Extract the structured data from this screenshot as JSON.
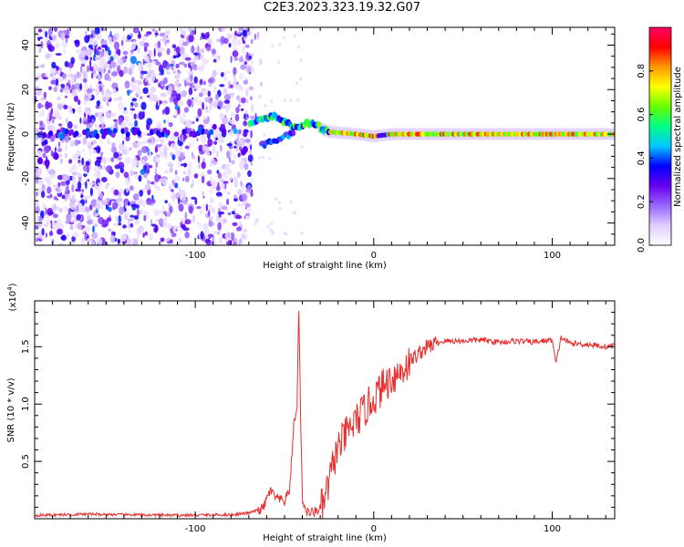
{
  "title": "C2E3.2023.323.19.32.G07",
  "chart_data": [
    {
      "type": "heatmap",
      "xlabel": "Height of straight line (km)",
      "ylabel": "Frequency (Hz)",
      "xlim": [
        -190,
        135
      ],
      "ylim": [
        -50,
        48
      ],
      "xticks": [
        -100,
        0,
        100
      ],
      "yticks": [
        -40,
        -20,
        0,
        20,
        40
      ],
      "colorbar": {
        "label": "Normalized spectral amplitude",
        "range": [
          0,
          1
        ],
        "ticks": [
          "0.0",
          "0.2",
          "0.4",
          "0.6",
          "0.8"
        ],
        "colors": [
          "#ffffff",
          "#e0ccff",
          "#9966ff",
          "#6600ee",
          "#0000ff",
          "#00c8ff",
          "#00ff88",
          "#66ff00",
          "#ffff00",
          "#ff9900",
          "#ff0000",
          "#ff0066"
        ]
      },
      "ridge": [
        {
          "x": -190,
          "f": 0
        },
        {
          "x": -100,
          "f": 1
        },
        {
          "x": -75,
          "f": 3
        },
        {
          "x": -60,
          "f": 7
        },
        {
          "x": -55,
          "f": 8
        },
        {
          "x": -45,
          "f": 3
        },
        {
          "x": -35,
          "f": 5
        },
        {
          "x": -25,
          "f": 1
        },
        {
          "x": -10,
          "f": 0
        },
        {
          "x": 0,
          "f": -1
        },
        {
          "x": 10,
          "f": 0
        },
        {
          "x": 135,
          "f": 0
        }
      ]
    },
    {
      "type": "line",
      "xlabel": "Height of straight line (km)",
      "ylabel": "SNR (10 * v/v)",
      "yscale_label": "(x10",
      "yscale_exp": "4",
      "yscale_close": ")",
      "xlim": [
        -190,
        135
      ],
      "ylim": [
        0,
        19000
      ],
      "xticks": [
        -100,
        0,
        100
      ],
      "yticks": [
        "0.5",
        "1.0",
        "1.5"
      ],
      "ytick_values": [
        5000,
        10000,
        15000
      ],
      "color": "#e83030",
      "x": [
        -190,
        -160,
        -140,
        -110,
        -80,
        -70,
        -62,
        -58,
        -55,
        -50,
        -47,
        -45,
        -43,
        -42,
        -41,
        -40,
        -39,
        -38,
        -36,
        -33,
        -30,
        -28,
        -25,
        -22,
        -20,
        -15,
        -10,
        -5,
        0,
        5,
        10,
        15,
        20,
        25,
        30,
        35,
        40,
        50,
        60,
        70,
        80,
        90,
        100,
        102,
        105,
        110,
        120,
        130,
        135
      ],
      "y": [
        300,
        400,
        350,
        300,
        350,
        500,
        900,
        2500,
        1800,
        1500,
        2600,
        8000,
        9600,
        19000,
        9000,
        1800,
        1200,
        700,
        500,
        600,
        900,
        1300,
        3200,
        5200,
        6200,
        7500,
        8500,
        9500,
        10500,
        11500,
        12300,
        12800,
        13700,
        14400,
        15000,
        15300,
        15500,
        15500,
        15600,
        15400,
        15500,
        15400,
        15600,
        13500,
        15800,
        15300,
        15200,
        15000,
        15100
      ]
    }
  ]
}
